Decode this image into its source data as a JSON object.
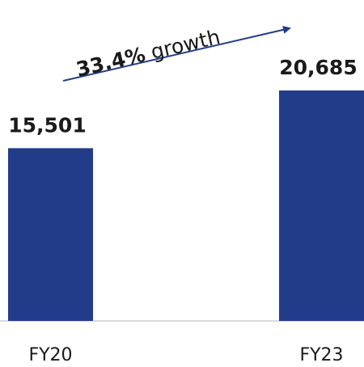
{
  "chart_data": {
    "type": "bar",
    "categories": [
      "FY20",
      "FY23"
    ],
    "values": [
      15501,
      20685
    ],
    "value_labels": [
      "15,501",
      "20,685"
    ],
    "color": "#233c8a",
    "annotation": [
      "33.4%",
      "growth"
    ],
    "ylim": [
      0,
      28000
    ]
  }
}
